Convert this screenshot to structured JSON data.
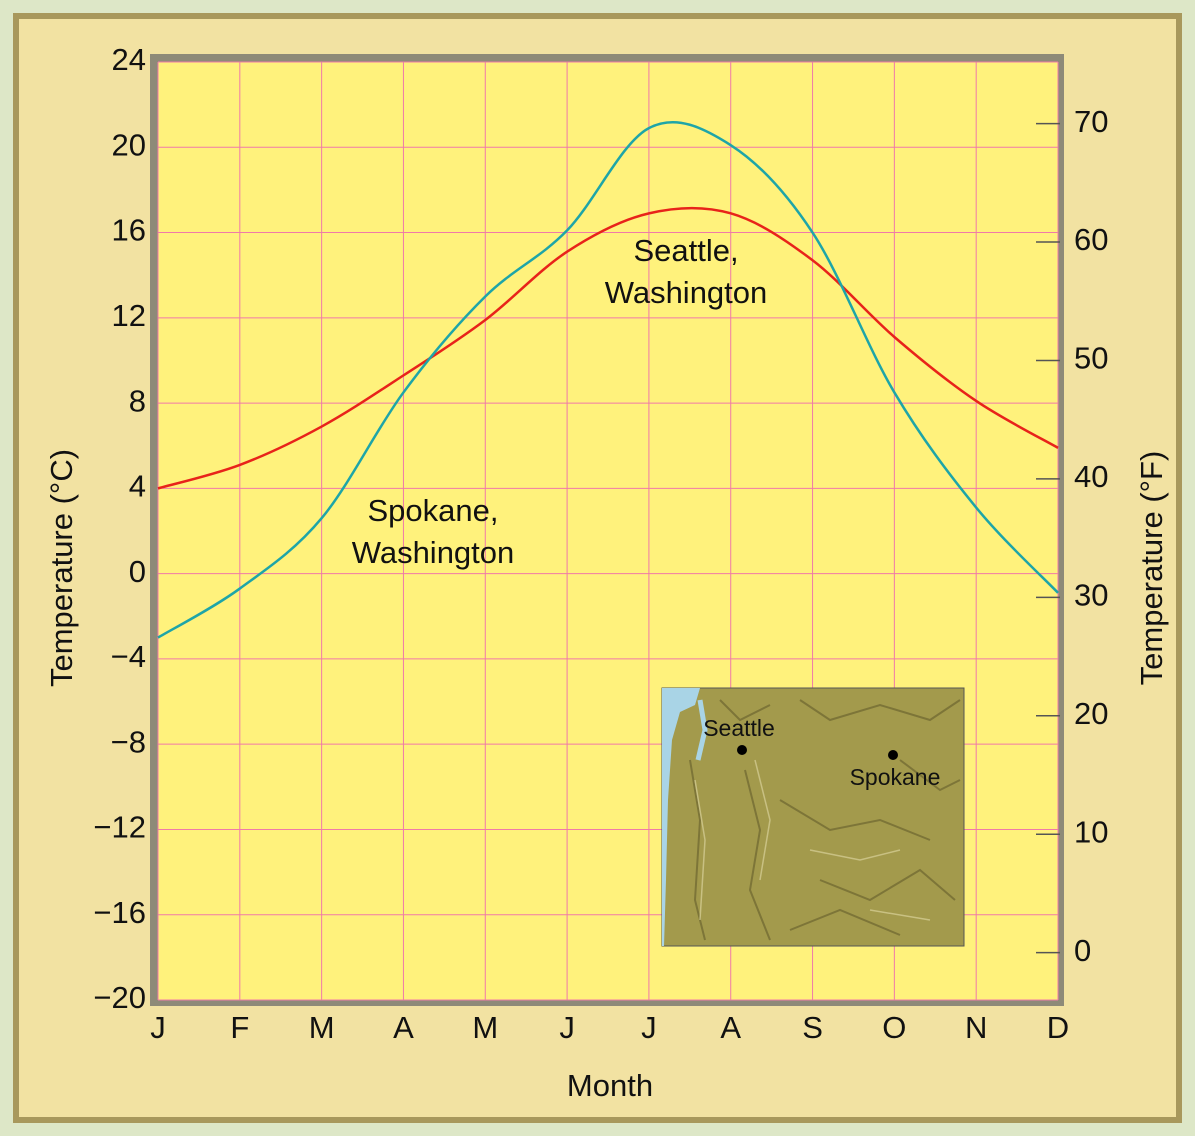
{
  "chart_data": {
    "type": "line",
    "x_label": "Month",
    "y_label": "Temperature (°C)",
    "y2_label": "Temperature (°F)",
    "categories": [
      "J",
      "F",
      "M",
      "A",
      "M",
      "J",
      "J",
      "A",
      "S",
      "O",
      "N",
      "D"
    ],
    "series": [
      {
        "name": "Seattle, Washington",
        "color": "#e8231a",
        "values": [
          4.0,
          5.1,
          6.9,
          9.3,
          11.9,
          15.1,
          16.9,
          16.9,
          14.7,
          11.1,
          8.1,
          5.9
        ]
      },
      {
        "name": "Spokane, Washington",
        "color": "#1ea5a8",
        "values": [
          -3.0,
          -0.7,
          2.6,
          8.5,
          13.0,
          16.1,
          20.9,
          20.1,
          16.0,
          8.5,
          3.1,
          -0.9
        ]
      }
    ],
    "ylim": [
      -20,
      24
    ],
    "yticks": [
      {
        "value": -20,
        "label": "−20"
      },
      {
        "value": -16,
        "label": "−16"
      },
      {
        "value": -12,
        "label": "−12"
      },
      {
        "value": -8,
        "label": "−8"
      },
      {
        "value": -4,
        "label": "−4"
      },
      0,
      4,
      8,
      12,
      16,
      20,
      24
    ],
    "y2lim": [
      -4,
      75.2
    ],
    "y2ticks": [
      0,
      10,
      20,
      30,
      40,
      50,
      60,
      70
    ],
    "grid": true
  },
  "inset": {
    "labels": [
      "Seattle",
      "Spokane"
    ]
  }
}
